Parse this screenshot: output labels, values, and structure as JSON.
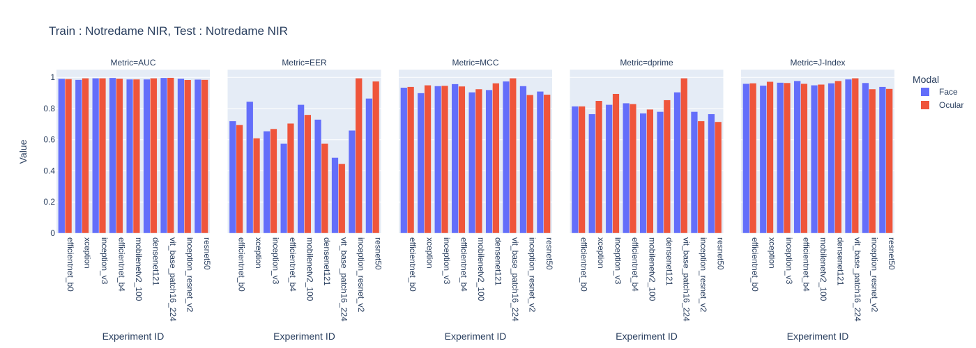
{
  "title": "Train : Notredame NIR, Test : Notredame NIR",
  "xlabel": "Experiment ID",
  "ylabel": "Value",
  "legend": {
    "title": "Modal",
    "items": [
      {
        "name": "Face",
        "color": "#636efa"
      },
      {
        "name": "Ocular",
        "color": "#ef553b"
      }
    ]
  },
  "colors": {
    "plot_bg": "#e5ecf6",
    "grid": "#ffffff",
    "text": "#2a3f5f"
  },
  "chart_data": {
    "type": "bar",
    "layout": "grouped facets sharing y axis",
    "categories": [
      "efficientnet_b0",
      "xception",
      "inception_v3",
      "efficientnet_b4",
      "mobilenetv2_100",
      "densenet121",
      "vit_base_patch16_224",
      "inception_resnet_v2",
      "resnet50"
    ],
    "ylim": [
      0,
      1.05
    ],
    "yticks": [
      0,
      0.2,
      0.4,
      0.6,
      0.8,
      1
    ],
    "yticklabels": [
      "0",
      "0.2",
      "0.4",
      "0.6",
      "0.8",
      "1"
    ],
    "grid": true,
    "legend_position": "right",
    "panels": [
      {
        "title": "Metric=AUC",
        "series": [
          {
            "name": "Face",
            "values": [
              0.992,
              0.985,
              0.995,
              0.997,
              0.988,
              0.988,
              0.997,
              0.993,
              0.987
            ]
          },
          {
            "name": "Ocular",
            "values": [
              0.99,
              0.995,
              0.995,
              0.993,
              0.988,
              0.995,
              0.998,
              0.984,
              0.985
            ]
          }
        ]
      },
      {
        "title": "Metric=EER",
        "series": [
          {
            "name": "Face",
            "values": [
              0.72,
              0.845,
              0.655,
              0.575,
              0.825,
              0.73,
              0.485,
              0.66,
              0.865
            ]
          },
          {
            "name": "Ocular",
            "values": [
              0.695,
              0.61,
              0.67,
              0.705,
              0.76,
              0.575,
              0.445,
              0.995,
              0.975
            ]
          }
        ]
      },
      {
        "title": "Metric=MCC",
        "series": [
          {
            "name": "Face",
            "values": [
              0.935,
              0.9,
              0.945,
              0.958,
              0.905,
              0.92,
              0.975,
              0.945,
              0.91
            ]
          },
          {
            "name": "Ocular",
            "values": [
              0.94,
              0.95,
              0.947,
              0.943,
              0.925,
              0.963,
              0.995,
              0.888,
              0.89
            ]
          }
        ]
      },
      {
        "title": "Metric=dprime",
        "series": [
          {
            "name": "Face",
            "values": [
              0.815,
              0.765,
              0.825,
              0.835,
              0.77,
              0.78,
              0.905,
              0.78,
              0.765
            ]
          },
          {
            "name": "Ocular",
            "values": [
              0.815,
              0.85,
              0.895,
              0.83,
              0.795,
              0.855,
              0.995,
              0.72,
              0.715
            ]
          }
        ]
      },
      {
        "title": "Metric=J-Index",
        "series": [
          {
            "name": "Face",
            "values": [
              0.96,
              0.948,
              0.967,
              0.978,
              0.95,
              0.963,
              0.988,
              0.965,
              0.94
            ]
          },
          {
            "name": "Ocular",
            "values": [
              0.963,
              0.973,
              0.965,
              0.96,
              0.955,
              0.978,
              0.995,
              0.925,
              0.927
            ]
          }
        ]
      }
    ]
  }
}
